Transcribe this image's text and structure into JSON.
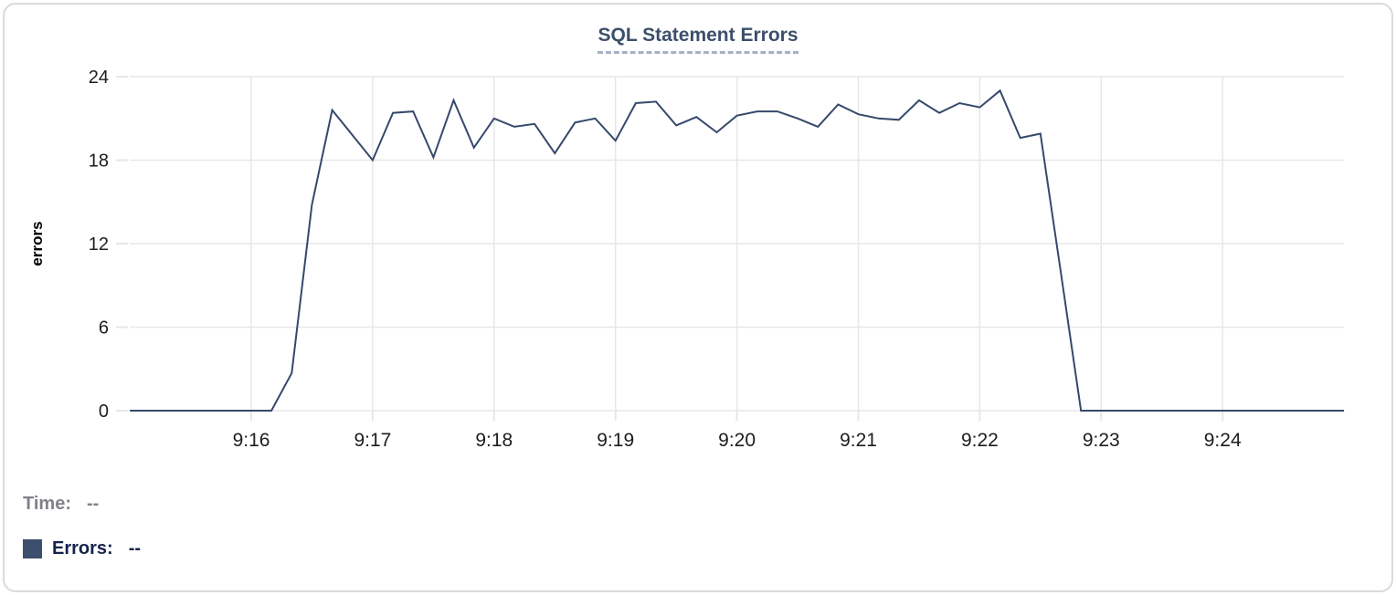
{
  "header": {
    "title": "SQL Statement Errors"
  },
  "legend": {
    "time_label": "Time:",
    "time_value": "--",
    "errors_label": "Errors:",
    "errors_value": "--"
  },
  "colors": {
    "line": "#36496b",
    "title_text": "#3c4f6b",
    "title_underline": "#a6b0c3",
    "grid": "#e7e7e7",
    "tick_text": "#1d1d1f",
    "axis_label_text": "#000000",
    "legend_time_gray": "#808289",
    "legend_errors_navy": "#15224c",
    "legend_swatch": "#3d4f6c",
    "card_border": "#dadada"
  },
  "chart_data": {
    "type": "line",
    "title": "SQL Statement Errors",
    "xlabel": "",
    "ylabel": "errors",
    "ylim": [
      0,
      24
    ],
    "yticks": [
      0,
      6,
      12,
      18,
      24
    ],
    "xticks": [
      "9:16",
      "9:17",
      "9:18",
      "9:19",
      "9:20",
      "9:21",
      "9:22",
      "9:23",
      "9:24"
    ],
    "x_range": [
      "9:15:00",
      "9:25:00"
    ],
    "sample_interval_seconds": 10,
    "grid": true,
    "legend_position": "bottom-left",
    "series": [
      {
        "name": "Errors",
        "color": "#36496b",
        "times": [
          "9:15:00",
          "9:15:10",
          "9:15:20",
          "9:15:30",
          "9:15:40",
          "9:15:50",
          "9:16:00",
          "9:16:10",
          "9:16:20",
          "9:16:30",
          "9:16:40",
          "9:16:50",
          "9:17:00",
          "9:17:10",
          "9:17:20",
          "9:17:30",
          "9:17:40",
          "9:17:50",
          "9:18:00",
          "9:18:10",
          "9:18:20",
          "9:18:30",
          "9:18:40",
          "9:18:50",
          "9:19:00",
          "9:19:10",
          "9:19:20",
          "9:19:30",
          "9:19:40",
          "9:19:50",
          "9:20:00",
          "9:20:10",
          "9:20:20",
          "9:20:30",
          "9:20:40",
          "9:20:50",
          "9:21:00",
          "9:21:10",
          "9:21:20",
          "9:21:30",
          "9:21:40",
          "9:21:50",
          "9:22:00",
          "9:22:10",
          "9:22:20",
          "9:22:30",
          "9:22:40",
          "9:22:50",
          "9:23:00",
          "9:23:10",
          "9:23:20",
          "9:23:30",
          "9:23:40",
          "9:23:50",
          "9:24:00",
          "9:24:10",
          "9:24:20",
          "9:24:30",
          "9:24:40",
          "9:24:50",
          "9:25:00"
        ],
        "values": [
          0,
          0,
          0,
          0,
          0,
          0,
          0,
          0,
          2.7,
          14.8,
          21.6,
          19.8,
          18.0,
          21.4,
          21.5,
          18.2,
          22.3,
          18.9,
          21.0,
          20.4,
          20.6,
          18.5,
          20.7,
          21.0,
          19.4,
          22.1,
          22.2,
          20.5,
          21.1,
          20.0,
          21.2,
          21.5,
          21.5,
          21.0,
          20.4,
          22.0,
          21.3,
          21.0,
          20.9,
          22.3,
          21.4,
          22.1,
          21.8,
          23.0,
          19.6,
          19.9,
          10.0,
          0,
          0,
          0,
          0,
          0,
          0,
          0,
          0,
          0,
          0,
          0,
          0,
          0,
          0
        ]
      }
    ]
  }
}
